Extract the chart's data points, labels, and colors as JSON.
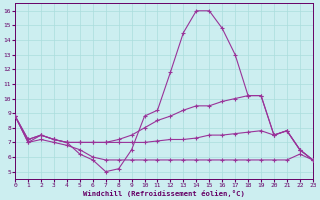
{
  "background_color": "#cceef0",
  "grid_color": "#aadddd",
  "line_color": "#993399",
  "xlabel": "Windchill (Refroidissement éolien,°C)",
  "xlim": [
    0,
    23
  ],
  "ylim": [
    4.5,
    16.5
  ],
  "xticks": [
    0,
    1,
    2,
    3,
    4,
    5,
    6,
    7,
    8,
    9,
    10,
    11,
    12,
    13,
    14,
    15,
    16,
    17,
    18,
    19,
    20,
    21,
    22,
    23
  ],
  "yticks": [
    5,
    6,
    7,
    8,
    9,
    10,
    11,
    12,
    13,
    14,
    15,
    16
  ],
  "series1": [
    8.8,
    7.0,
    7.5,
    7.2,
    7.0,
    6.2,
    5.8,
    5.0,
    5.2,
    6.5,
    8.8,
    9.2,
    11.8,
    14.5,
    16.0,
    16.0,
    14.8,
    13.0,
    10.2,
    10.2,
    7.5,
    7.8,
    6.5,
    5.8
  ],
  "series2": [
    8.8,
    7.2,
    7.5,
    7.2,
    7.0,
    7.0,
    7.0,
    7.0,
    7.2,
    7.5,
    8.0,
    8.5,
    8.8,
    9.2,
    9.5,
    9.5,
    9.8,
    10.0,
    10.2,
    10.2,
    7.5,
    7.8,
    6.5,
    5.8
  ],
  "series3": [
    8.8,
    7.2,
    7.5,
    7.2,
    7.0,
    7.0,
    7.0,
    7.0,
    7.0,
    7.0,
    7.0,
    7.1,
    7.2,
    7.2,
    7.3,
    7.5,
    7.5,
    7.6,
    7.7,
    7.8,
    7.5,
    7.8,
    6.5,
    5.8
  ],
  "series4": [
    8.8,
    7.0,
    7.2,
    7.0,
    6.8,
    6.5,
    6.0,
    5.8,
    5.8,
    5.8,
    5.8,
    5.8,
    5.8,
    5.8,
    5.8,
    5.8,
    5.8,
    5.8,
    5.8,
    5.8,
    5.8,
    5.8,
    6.2,
    5.8
  ]
}
